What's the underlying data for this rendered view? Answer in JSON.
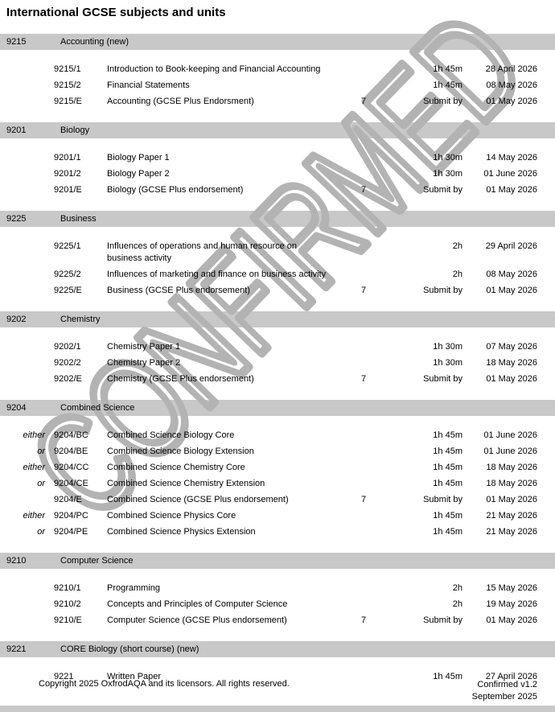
{
  "page": {
    "title": "International GCSE subjects and units",
    "watermark": "CONFIRMED",
    "colors": {
      "bar": "#c8c8c8",
      "watermark": "#b3b3b3"
    }
  },
  "sections": [
    {
      "code": "9215",
      "name": "Accounting (new)",
      "rows": [
        {
          "prefix": "",
          "code": "9215/1",
          "title": "Introduction to Book-keeping and Financial Accounting",
          "components": "",
          "duration": "1h 45m",
          "date": "28 April 2026"
        },
        {
          "prefix": "",
          "code": "9215/2",
          "title": "Financial Statements",
          "components": "",
          "duration": "1h 45m",
          "date": "08 May 2026"
        },
        {
          "prefix": "",
          "code": "9215/E",
          "title": "Accounting (GCSE Plus Endorsment)",
          "components": "7",
          "duration": "Submit by",
          "date": "01 May 2026"
        }
      ]
    },
    {
      "code": "9201",
      "name": "Biology",
      "rows": [
        {
          "prefix": "",
          "code": "9201/1",
          "title": "Biology Paper 1",
          "components": "",
          "duration": "1h 30m",
          "date": "14 May 2026"
        },
        {
          "prefix": "",
          "code": "9201/2",
          "title": "Biology Paper 2",
          "components": "",
          "duration": "1h 30m",
          "date": "01 June 2026"
        },
        {
          "prefix": "",
          "code": "9201/E",
          "title": "Biology (GCSE Plus endorsement)",
          "components": "7",
          "duration": "Submit by",
          "date": "01 May 2026"
        }
      ]
    },
    {
      "code": "9225",
      "name": "Business",
      "rows": [
        {
          "prefix": "",
          "code": "9225/1",
          "title": "Influences of operations and human resource on\nbusiness activity",
          "components": "",
          "duration": "2h",
          "date": "29 April 2026"
        },
        {
          "prefix": "",
          "code": "9225/2",
          "title": "Influences of marketing and finance on business activity",
          "components": "",
          "duration": "2h",
          "date": "08 May 2026"
        },
        {
          "prefix": "",
          "code": "9225/E",
          "title": "Business (GCSE Plus endorsement)",
          "components": "7",
          "duration": "Submit by",
          "date": "01 May 2026"
        }
      ]
    },
    {
      "code": "9202",
      "name": "Chemistry",
      "rows": [
        {
          "prefix": "",
          "code": "9202/1",
          "title": "Chemistry Paper 1",
          "components": "",
          "duration": "1h 30m",
          "date": "07 May 2026"
        },
        {
          "prefix": "",
          "code": "9202/2",
          "title": "Chemistry Paper 2",
          "components": "",
          "duration": "1h 30m",
          "date": "18 May 2026"
        },
        {
          "prefix": "",
          "code": "9202/E",
          "title": "Chemistry (GCSE Plus endorsement)",
          "components": "7",
          "duration": "Submit by",
          "date": "01 May 2026"
        }
      ]
    },
    {
      "code": "9204",
      "name": "Combined Science",
      "rows": [
        {
          "prefix": "either",
          "code": "9204/BC",
          "title": "Combined Science Biology Core",
          "components": "",
          "duration": "1h 45m",
          "date": "01 June 2026"
        },
        {
          "prefix": "or",
          "code": "9204/BE",
          "title": "Combined Science Biology Extension",
          "components": "",
          "duration": "1h 45m",
          "date": "01 June 2026"
        },
        {
          "prefix": "either",
          "code": "9204/CC",
          "title": "Combined Science Chemistry Core",
          "components": "",
          "duration": "1h 45m",
          "date": "18 May 2026"
        },
        {
          "prefix": "or",
          "code": "9204/CE",
          "title": "Combined Science Chemistry Extension",
          "components": "",
          "duration": "1h 45m",
          "date": "18 May 2026"
        },
        {
          "prefix": "",
          "code": "9204/E",
          "title": "Combined Science (GCSE Plus endorsement)",
          "components": "7",
          "duration": "Submit by",
          "date": "01 May 2026"
        },
        {
          "prefix": "either",
          "code": "9204/PC",
          "title": "Combined Science Physics Core",
          "components": "",
          "duration": "1h 45m",
          "date": "21 May 2026"
        },
        {
          "prefix": "or",
          "code": "9204/PE",
          "title": "Combined Science Physics Extension",
          "components": "",
          "duration": "1h 45m",
          "date": "21 May 2026"
        }
      ]
    },
    {
      "code": "9210",
      "name": "Computer Science",
      "rows": [
        {
          "prefix": "",
          "code": "9210/1",
          "title": "Programming",
          "components": "",
          "duration": "2h",
          "date": "15 May 2026"
        },
        {
          "prefix": "",
          "code": "9210/2",
          "title": "Concepts and Principles of Computer Science",
          "components": "",
          "duration": "2h",
          "date": "19 May 2026"
        },
        {
          "prefix": "",
          "code": "9210/E",
          "title": "Computer Science (GCSE Plus endorsement)",
          "components": "7",
          "duration": "Submit by",
          "date": "01 May 2026"
        }
      ]
    },
    {
      "code": "9221",
      "name": "CORE Biology (short course) (new)",
      "rows": [
        {
          "prefix": "",
          "code": "9221",
          "title": "Written Paper",
          "components": "",
          "duration": "1h 45m",
          "date": "27 April 2026"
        }
      ]
    }
  ],
  "footer": {
    "copyright": "Copyright 2025 OxfrodAQA and its licensors. All rights reserved.",
    "version": "Confirmed v1.2",
    "date": "September 2025"
  }
}
